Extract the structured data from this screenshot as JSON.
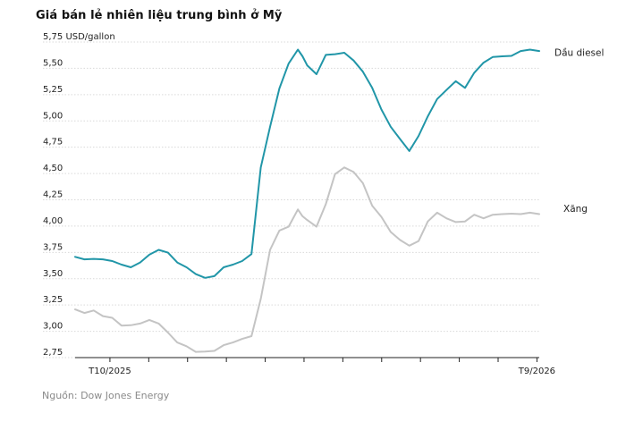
{
  "chart_data": {
    "type": "line",
    "title": "Giá bán lẻ nhiên liệu trung bình ở Mỹ",
    "y_unit_label": "5,75 USD/gallon",
    "source": "Nguồn: Dow Jones Energy",
    "ylim": [
      2.75,
      5.75
    ],
    "y_ticks": [
      "5,75 USD/gallon",
      "5,50",
      "5,25",
      "5,00",
      "4,75",
      "4,50",
      "4,25",
      "4,00",
      "3,75",
      "3,50",
      "3,25",
      "3,00",
      "2,75"
    ],
    "y_tick_values": [
      5.75,
      5.5,
      5.25,
      5.0,
      4.75,
      4.5,
      4.25,
      4.0,
      3.75,
      3.5,
      3.25,
      3.0,
      2.75
    ],
    "x_ticks": [
      "T10/2025",
      "",
      "",
      "",
      "",
      "",
      "",
      "",
      "",
      "",
      "",
      "T9/2026"
    ],
    "x": [
      0,
      0.02,
      0.04,
      0.06,
      0.08,
      0.1,
      0.12,
      0.14,
      0.16,
      0.18,
      0.2,
      0.22,
      0.24,
      0.26,
      0.28,
      0.3,
      0.32,
      0.34,
      0.36,
      0.38,
      0.4,
      0.42,
      0.44,
      0.46,
      0.48,
      0.49,
      0.5,
      0.52,
      0.54,
      0.56,
      0.58,
      0.6,
      0.62,
      0.64,
      0.66,
      0.68,
      0.7,
      0.72,
      0.74,
      0.76,
      0.78,
      0.8,
      0.82,
      0.84,
      0.86,
      0.88,
      0.9,
      0.92,
      0.94,
      0.96,
      0.98,
      1.0
    ],
    "grid": true,
    "series": [
      {
        "name": "Dầu diesel",
        "color": "#2196a8",
        "values": [
          3.7,
          3.69,
          3.68,
          3.69,
          3.66,
          3.64,
          3.6,
          3.66,
          3.72,
          3.78,
          3.74,
          3.66,
          3.6,
          3.55,
          3.5,
          3.53,
          3.6,
          3.64,
          3.66,
          3.74,
          4.55,
          4.95,
          5.3,
          5.55,
          5.67,
          5.62,
          5.52,
          5.45,
          5.62,
          5.64,
          5.64,
          5.58,
          5.46,
          5.32,
          5.1,
          4.95,
          4.82,
          4.72,
          4.85,
          5.05,
          5.2,
          5.3,
          5.37,
          5.32,
          5.45,
          5.56,
          5.6,
          5.62,
          5.61,
          5.67,
          5.67,
          5.67
        ]
      },
      {
        "name": "Xăng",
        "color": "#c4c4c4",
        "values": [
          3.2,
          3.18,
          3.19,
          3.15,
          3.12,
          3.06,
          3.05,
          3.08,
          3.1,
          3.08,
          2.98,
          2.9,
          2.85,
          2.81,
          2.8,
          2.82,
          2.86,
          2.9,
          2.92,
          2.96,
          3.3,
          3.78,
          3.95,
          4.0,
          4.15,
          4.1,
          4.05,
          4.0,
          4.2,
          4.5,
          4.55,
          4.52,
          4.4,
          4.2,
          4.08,
          3.95,
          3.86,
          3.82,
          3.85,
          4.05,
          4.12,
          4.08,
          4.03,
          4.05,
          4.1,
          4.08,
          4.1,
          4.12,
          4.11,
          4.12,
          4.12,
          4.12
        ]
      }
    ]
  }
}
